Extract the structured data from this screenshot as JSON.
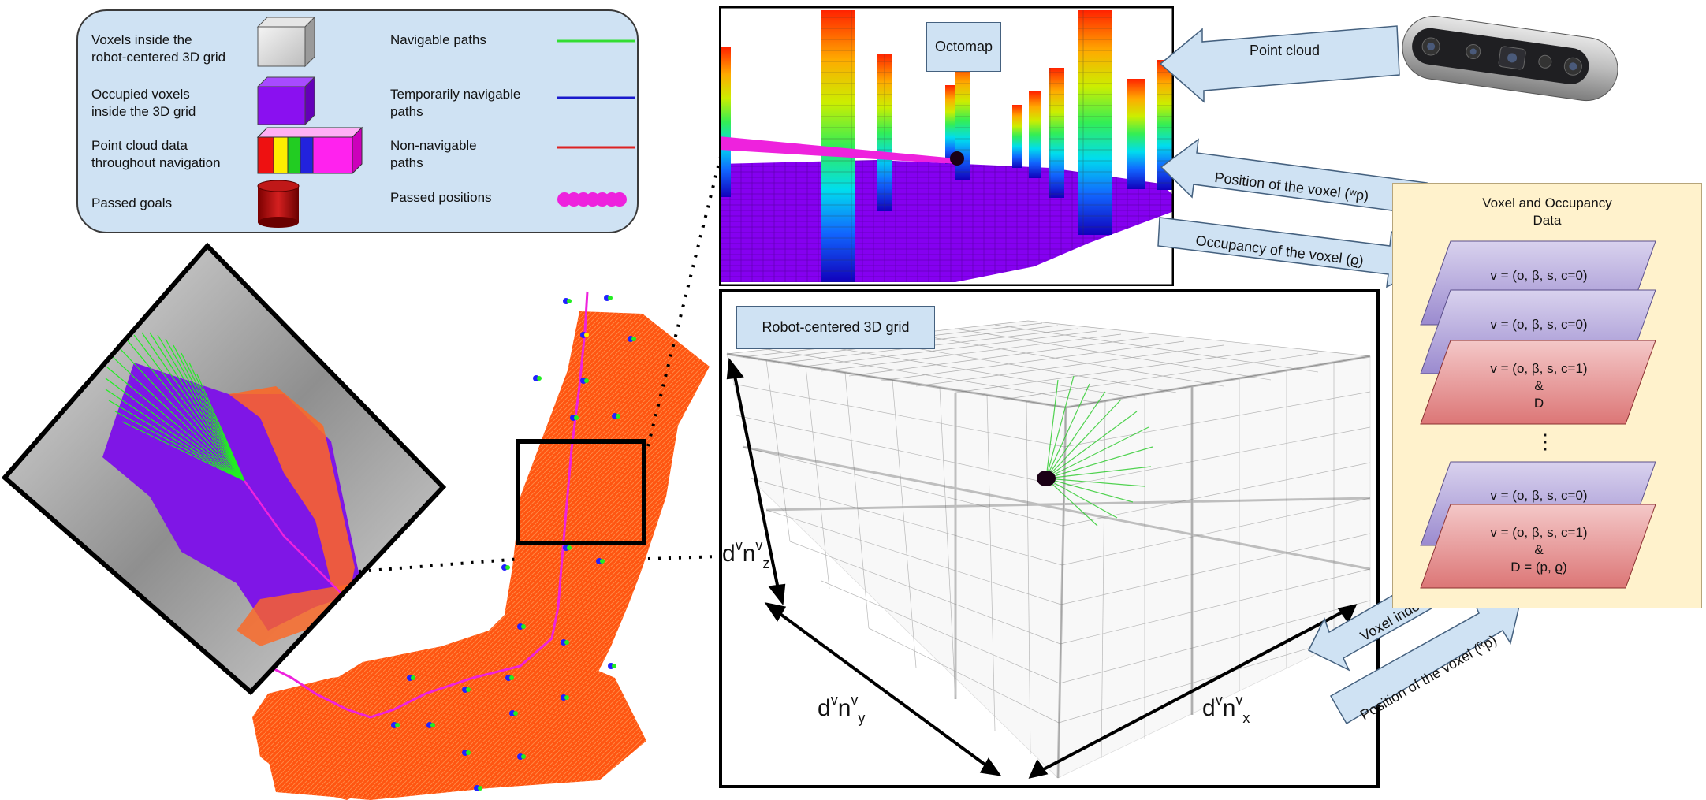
{
  "legend": {
    "items": [
      {
        "label": "Voxels inside the\nrobot-centered 3D grid",
        "icon": "grey-cube-icon"
      },
      {
        "label": "Occupied voxels\ninside the 3D grid",
        "icon": "purple-cube-icon"
      },
      {
        "label": "Point cloud data\nthroughout navigation",
        "icon": "rainbow-block-icon"
      },
      {
        "label": "Passed goals",
        "icon": "red-cylinder-icon"
      },
      {
        "label": "Navigable paths",
        "color": "#33dd33"
      },
      {
        "label": "Temporarily navigable\npaths",
        "color": "#1a1acc"
      },
      {
        "label": "Non-navigable\npaths",
        "color": "#dd2222"
      },
      {
        "label": "Passed positions",
        "color": "#ee22dd"
      }
    ]
  },
  "octomap_label": "Octomap",
  "grid_label": "Robot-centered 3D grid",
  "arrows": {
    "point_cloud": "Point cloud",
    "position_w": "Position of the voxel (ʷp)",
    "occupancy": "Occupancy of the voxel (ϱ)",
    "voxel_index": "Voxel index (o)",
    "position_r": "Position of the voxel (ᴿp)"
  },
  "dimensions": {
    "z": {
      "base": "d",
      "sup1": "v",
      "mid": "n",
      "sup2": "v",
      "sub": "z"
    },
    "y": {
      "base": "d",
      "sup1": "v",
      "mid": "n",
      "sup2": "v",
      "sub": "y"
    },
    "x": {
      "base": "d",
      "sup1": "v",
      "mid": "n",
      "sup2": "v",
      "sub": "x"
    }
  },
  "voxel_panel": {
    "title": "Voxel and Occupancy\nData",
    "cards": [
      {
        "text": "v = (o, β, s, c=0)",
        "kind": "free"
      },
      {
        "text": "v = (o, β, s, c=0)",
        "kind": "free"
      },
      {
        "text": "v = (o, β, s, c=1)\n&\nD",
        "kind": "occupied"
      },
      {
        "text": "v = (o, β, s, c=0)",
        "kind": "free"
      },
      {
        "text": "v = (o, β, s, c=1)\n&\nD = (p, ϱ)",
        "kind": "occupied"
      }
    ],
    "ellipsis": "⋮"
  },
  "colors": {
    "legend_bg": "#cfe2f3",
    "panel_bg": "#fff2cc",
    "purple_card": "#b4a7d6",
    "red_card": "#ea9999",
    "map_orange": "#ff5511",
    "occupied_purple": "#8800ee"
  }
}
